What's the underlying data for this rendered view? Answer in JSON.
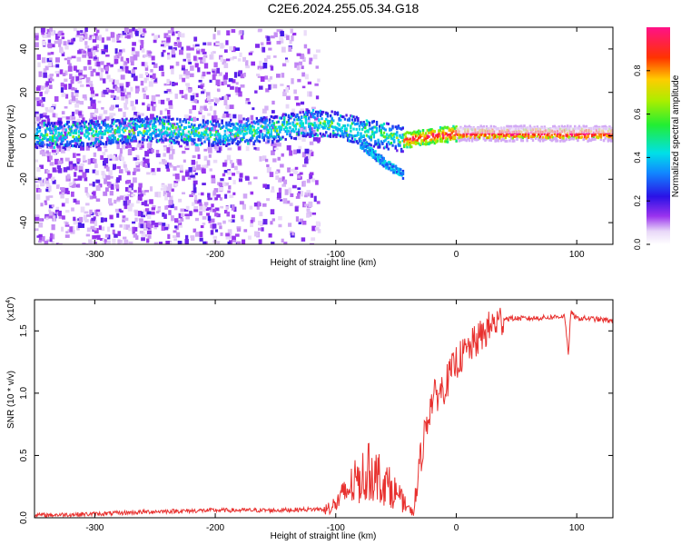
{
  "title": "C2E6.2024.255.05.34.G18",
  "colors": {
    "snr_line": "#e8312f",
    "axes": "#000000"
  },
  "chart_data": [
    {
      "type": "heatmap",
      "xlabel": "Height of straight line (km)",
      "ylabel": "Frequency (Hz)",
      "xlim": [
        -350,
        130
      ],
      "ylim": [
        -50,
        50
      ],
      "xticks": [
        "-300",
        "-200",
        "-100",
        "0",
        "100"
      ],
      "xtick_values": [
        -300,
        -200,
        -100,
        0,
        100
      ],
      "yticks": [
        "-40",
        "-20",
        "0",
        "20",
        "40"
      ],
      "ytick_values": [
        -40,
        -20,
        0,
        20,
        40
      ],
      "colorbar": {
        "label": "Normalized spectral amplitude",
        "range": [
          0,
          1
        ],
        "ticks": [
          "0.0",
          "0.2",
          "0.4",
          "0.6",
          "0.8"
        ],
        "tick_values": [
          0.0,
          0.2,
          0.4,
          0.6,
          0.8
        ],
        "colormap": "rainbow (white-purple-blue-cyan-green-yellow-orange-red-magenta)"
      },
      "ridge": {
        "x": [
          -350,
          -300,
          -250,
          -200,
          -150,
          -120,
          -100,
          -80,
          -60,
          -40,
          -20,
          0,
          50,
          130
        ],
        "y": [
          0,
          1,
          3,
          1,
          3,
          6,
          5,
          2,
          0,
          -2,
          0,
          1,
          1,
          1
        ]
      },
      "branch": {
        "x": [
          -80,
          -60,
          -45
        ],
        "y": [
          -3,
          -12,
          -17
        ]
      }
    },
    {
      "type": "line",
      "xlabel": "Height of straight line (km)",
      "ylabel": "SNR (10 * v/v)",
      "multiplier": "(x10",
      "multiplier_exp": "4",
      "multiplier_close": ")",
      "xlim": [
        -350,
        130
      ],
      "ylim": [
        0,
        1.75
      ],
      "xticks": [
        "-300",
        "-200",
        "-100",
        "0",
        "100"
      ],
      "xtick_values": [
        -300,
        -200,
        -100,
        0,
        100
      ],
      "yticks": [
        "0.0",
        "0.5",
        "1.0",
        "1.5"
      ],
      "ytick_values": [
        0.0,
        0.5,
        1.0,
        1.5
      ],
      "series": [
        {
          "x": [
            -350,
            -300,
            -250,
            -200,
            -150,
            -110,
            -100,
            -90,
            -80,
            -70,
            -60,
            -50,
            -40,
            -35,
            -30,
            -25,
            -20,
            -10,
            0,
            10,
            20,
            30,
            40,
            60,
            80,
            90,
            93,
            95,
            100,
            110,
            120,
            130
          ],
          "y": [
            0.02,
            0.03,
            0.05,
            0.06,
            0.06,
            0.07,
            0.12,
            0.25,
            0.35,
            0.42,
            0.32,
            0.22,
            0.08,
            0.04,
            0.45,
            0.75,
            0.95,
            1.05,
            1.25,
            1.35,
            1.45,
            1.55,
            1.6,
            1.6,
            1.61,
            1.62,
            1.3,
            1.65,
            1.6,
            1.6,
            1.59,
            1.58
          ]
        }
      ]
    }
  ]
}
